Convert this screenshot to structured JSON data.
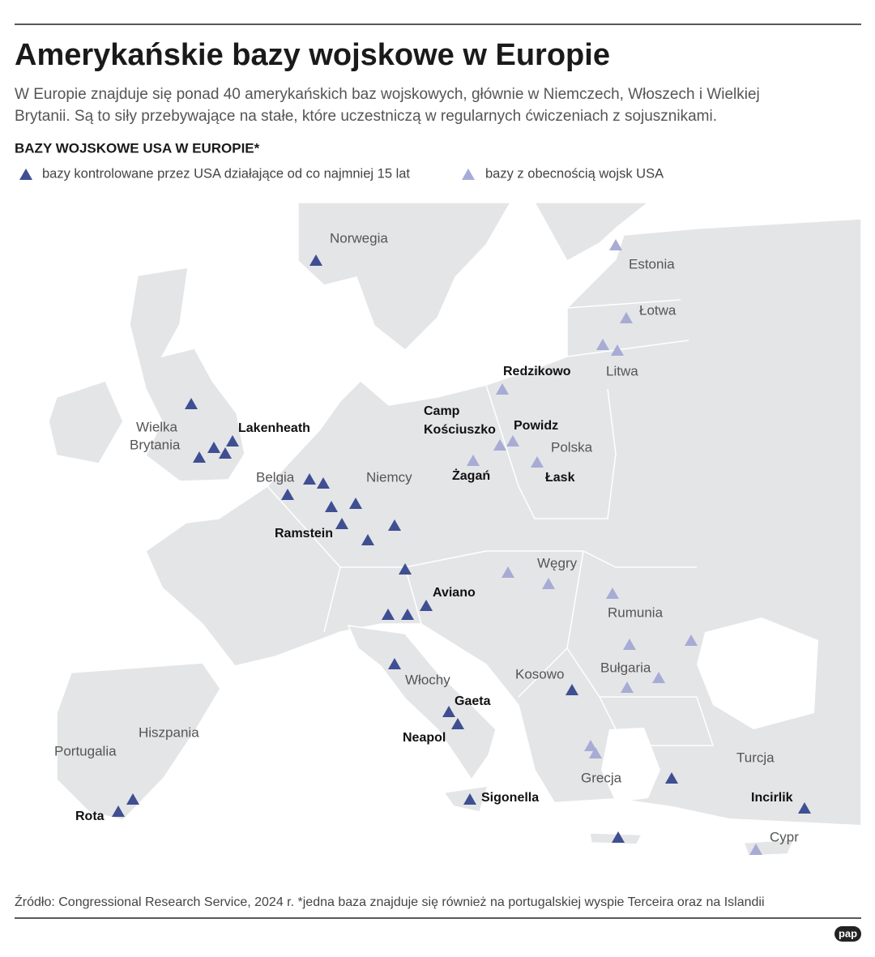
{
  "header": {
    "title": "Amerykańskie bazy wojskowe w Europie",
    "subtitle_lines": [
      "W Europie znajduje się ponad 40 amerykańskich baz wojskowych, głównie w Niemczech, Włoszech i Wielkiej",
      "Brytanii. Są to siły przebywające na stałe, które uczestniczą w regularnych ćwiczeniach z sojusznikami."
    ]
  },
  "map": {
    "heading": "BAZY WOJSKOWE USA W EUROPIE*",
    "legend": [
      {
        "label": "bazy kontrolowane przez USA działające od co najmniej 15 lat"
      },
      {
        "label": "bazy z obecnością wojsk USA"
      }
    ],
    "countries": [
      "Norwegia",
      "Estonia",
      "Łotwa",
      "Litwa",
      [
        "Wielka",
        "Brytania"
      ],
      "Polska",
      "Belgia",
      "Niemcy",
      "Węgry",
      "Rumunia",
      "Włochy",
      "Kosowo",
      "Bułgaria",
      "Hiszpania",
      "Portugalia",
      "Turcja",
      "Grecja",
      "Cypr"
    ],
    "bases": [
      "Redzikowo",
      "Lakenheath",
      [
        "Camp",
        "Kościuszko"
      ],
      "Powidz",
      "Żagań",
      "Łask",
      "Ramstein",
      "Aviano",
      "Gaeta",
      "Neapol",
      "Sigonella",
      "Rota",
      "Incirlik"
    ]
  },
  "footer": {
    "source": "Źródło: Congressional Research Service, 2024 r. *jedna baza znajduje się również na portugalskiej wyspie Terceira oraz na Islandii",
    "logo": "pap"
  }
}
